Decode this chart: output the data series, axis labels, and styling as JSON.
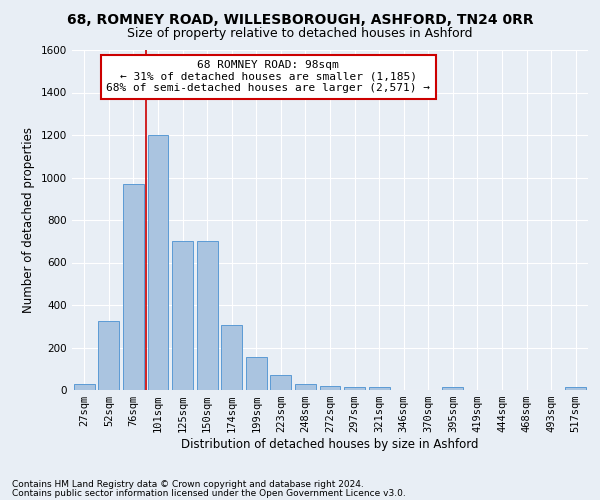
{
  "title": "68, ROMNEY ROAD, WILLESBOROUGH, ASHFORD, TN24 0RR",
  "subtitle": "Size of property relative to detached houses in Ashford",
  "xlabel": "Distribution of detached houses by size in Ashford",
  "ylabel": "Number of detached properties",
  "categories": [
    "27sqm",
    "52sqm",
    "76sqm",
    "101sqm",
    "125sqm",
    "150sqm",
    "174sqm",
    "199sqm",
    "223sqm",
    "248sqm",
    "272sqm",
    "297sqm",
    "321sqm",
    "346sqm",
    "370sqm",
    "395sqm",
    "419sqm",
    "444sqm",
    "468sqm",
    "493sqm",
    "517sqm"
  ],
  "values": [
    30,
    325,
    970,
    1200,
    700,
    700,
    305,
    155,
    70,
    30,
    20,
    15,
    15,
    0,
    0,
    15,
    0,
    0,
    0,
    0,
    15
  ],
  "bar_color": "#aac4e0",
  "bar_edge_color": "#5b9bd5",
  "annotation_title": "68 ROMNEY ROAD: 98sqm",
  "annotation_line1": "← 31% of detached houses are smaller (1,185)",
  "annotation_line2": "68% of semi-detached houses are larger (2,571) →",
  "vline_color": "#cc0000",
  "annotation_box_color": "#ffffff",
  "annotation_box_edge": "#cc0000",
  "ylim": [
    0,
    1600
  ],
  "yticks": [
    0,
    200,
    400,
    600,
    800,
    1000,
    1200,
    1400,
    1600
  ],
  "footer1": "Contains HM Land Registry data © Crown copyright and database right 2024.",
  "footer2": "Contains public sector information licensed under the Open Government Licence v3.0.",
  "bg_color": "#e8eef5",
  "grid_color": "#ffffff",
  "title_fontsize": 10,
  "subtitle_fontsize": 9,
  "axis_label_fontsize": 8.5,
  "tick_fontsize": 7.5,
  "annotation_fontsize": 8,
  "footer_fontsize": 6.5
}
